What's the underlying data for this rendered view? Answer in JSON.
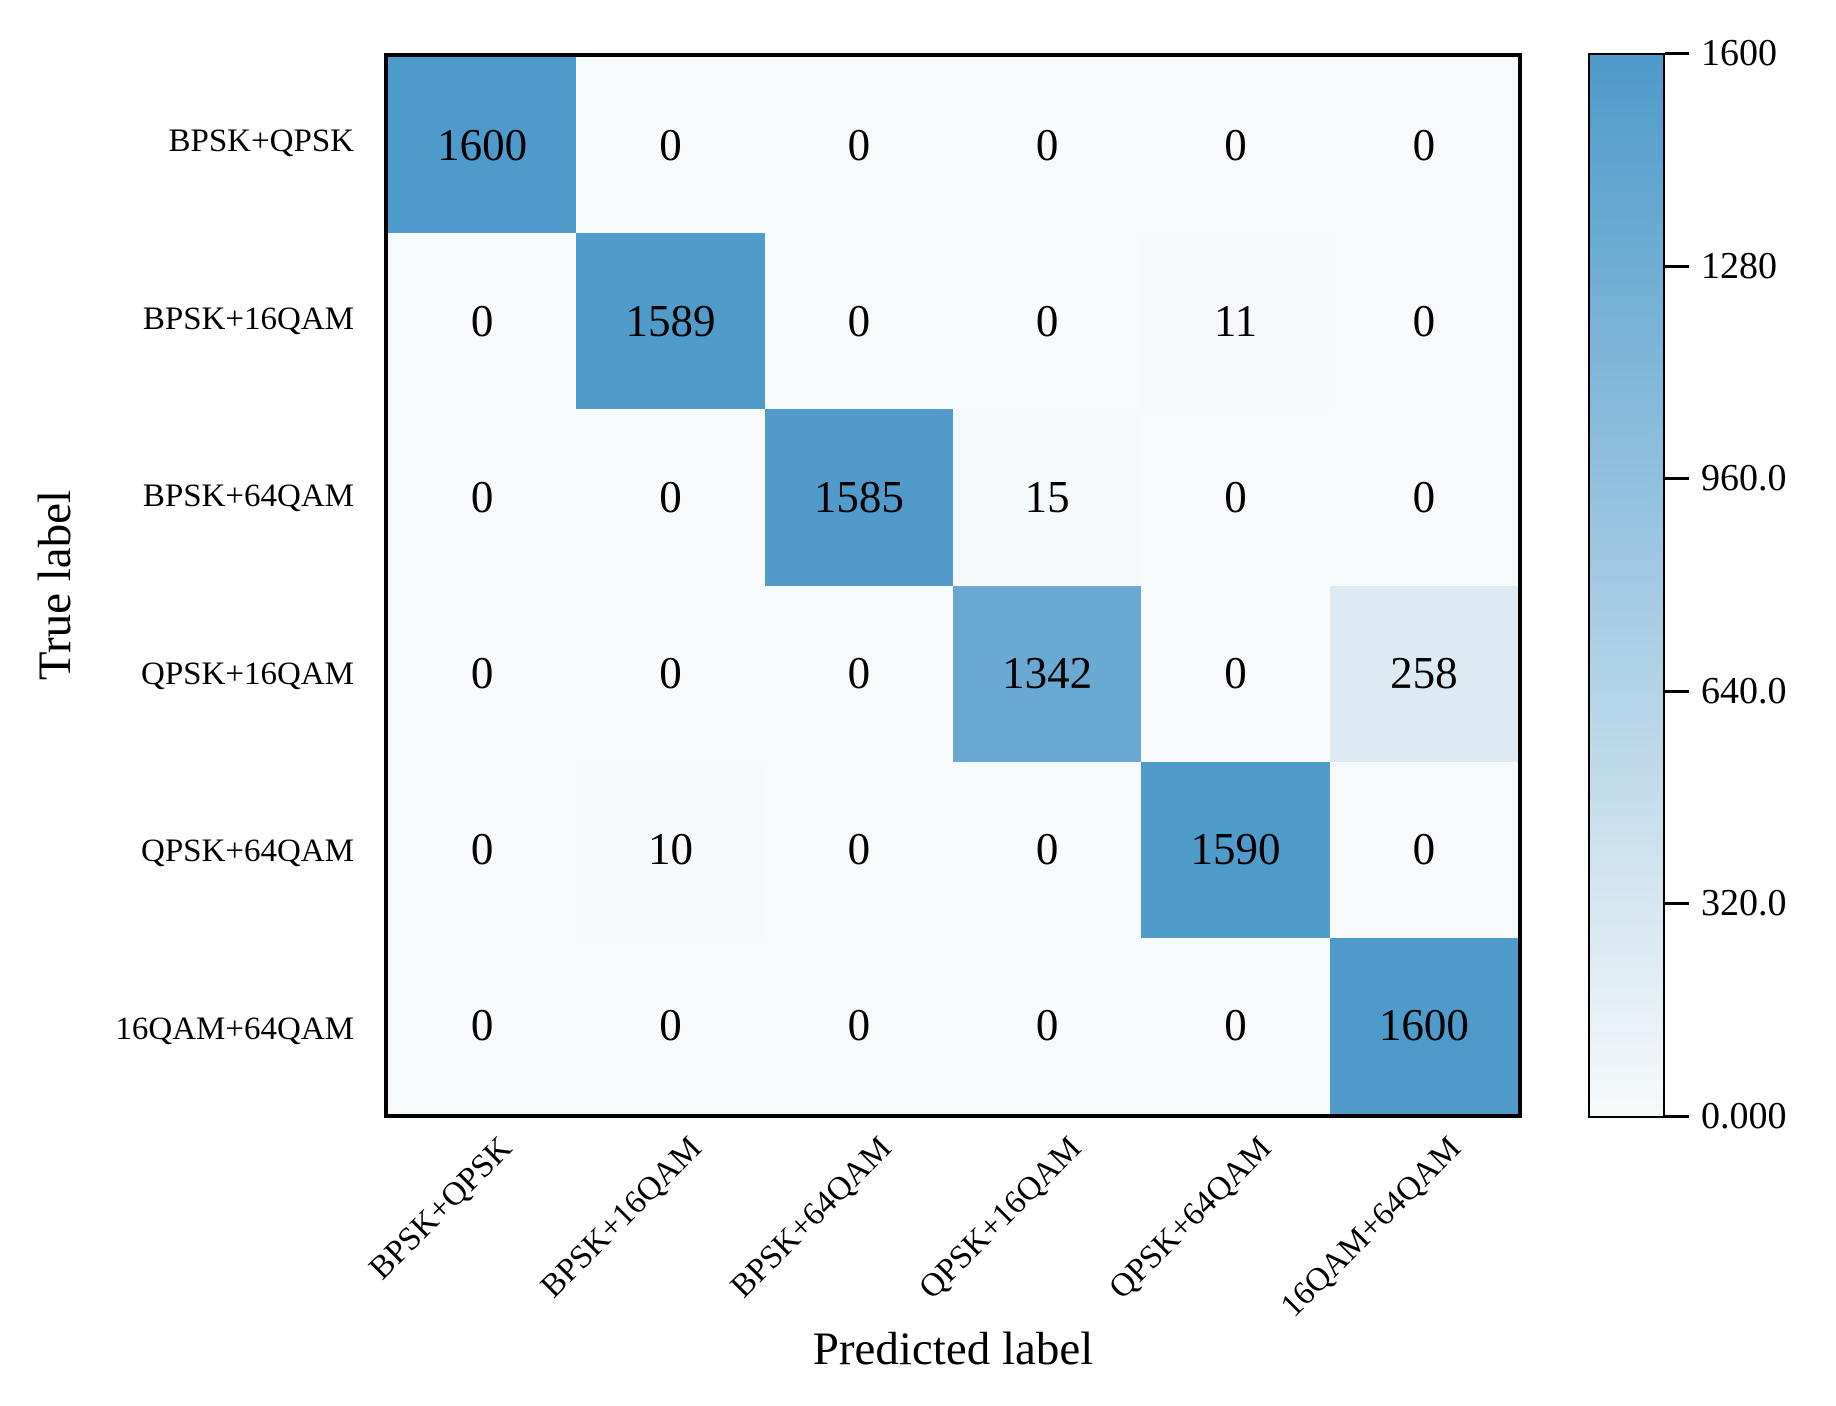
{
  "figure": {
    "background": "#ffffff",
    "xlabel": "Predicted label",
    "ylabel": "True label"
  },
  "chart_data": {
    "type": "heatmap",
    "title": "",
    "xlabel": "Predicted label",
    "ylabel": "True label",
    "x_categories": [
      "BPSK+QPSK",
      "BPSK+16QAM",
      "BPSK+64QAM",
      "QPSK+16QAM",
      "QPSK+64QAM",
      "16QAM+64QAM"
    ],
    "y_categories": [
      "BPSK+QPSK",
      "BPSK+16QAM",
      "BPSK+64QAM",
      "QPSK+16QAM",
      "QPSK+64QAM",
      "16QAM+64QAM"
    ],
    "matrix": [
      [
        1600,
        0,
        0,
        0,
        0,
        0
      ],
      [
        0,
        1589,
        0,
        0,
        11,
        0
      ],
      [
        0,
        0,
        1585,
        15,
        0,
        0
      ],
      [
        0,
        0,
        0,
        1342,
        0,
        258
      ],
      [
        0,
        10,
        0,
        0,
        1590,
        0
      ],
      [
        0,
        0,
        0,
        0,
        0,
        1600
      ]
    ],
    "value_range": [
      0,
      1600
    ],
    "grid": false,
    "legend_position": "right-colorbar",
    "colorbar": {
      "tick_labels": [
        "1600",
        "1280",
        "960.0",
        "640.0",
        "320.0",
        "0.000"
      ],
      "tick_values": [
        1600,
        1280,
        960,
        640,
        320,
        0
      ],
      "vmin": 0,
      "vmax": 1600
    },
    "colors": {
      "cell_min": "#F7FAFB",
      "cell_max": "#4E9ACA",
      "cell_text": "#000000",
      "border": "#000000"
    }
  }
}
